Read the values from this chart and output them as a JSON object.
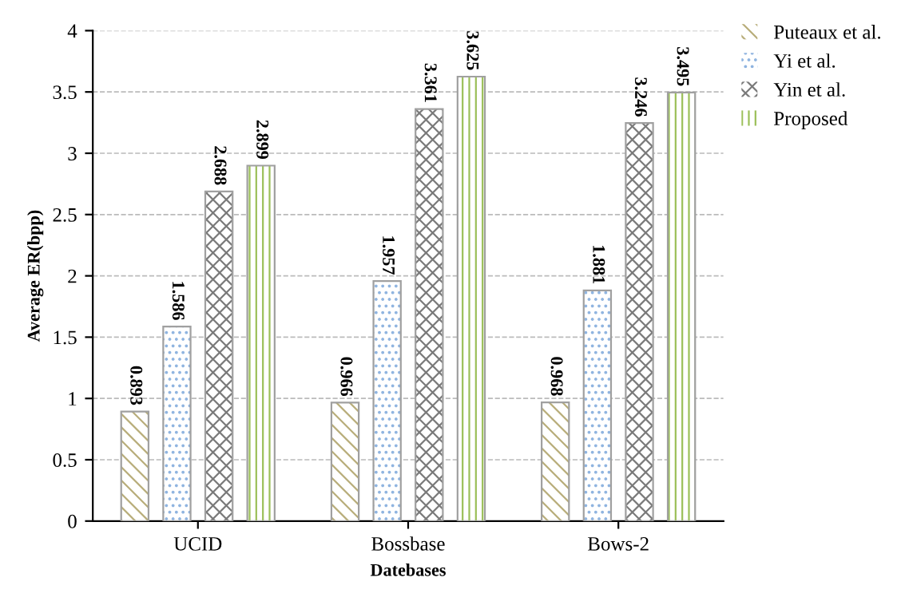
{
  "chart_data": {
    "type": "bar",
    "xlabel": "Datebases",
    "ylabel": "Average ER(bpp)",
    "categories": [
      "UCID",
      "Bossbase",
      "Bows-2"
    ],
    "series": [
      {
        "name": "Puteaux et al.",
        "color": "#b8ad7a",
        "values": [
          0.893,
          0.966,
          0.968
        ]
      },
      {
        "name": "Yi et al.",
        "color": "#8fb4e0",
        "values": [
          1.586,
          1.957,
          1.881
        ]
      },
      {
        "name": "Yin et al.",
        "color": "#7a7a7a",
        "values": [
          2.688,
          3.361,
          3.246
        ]
      },
      {
        "name": "Proposed",
        "color": "#9cc05a",
        "values": [
          2.899,
          3.625,
          3.495
        ]
      }
    ],
    "ylim": [
      0,
      4
    ],
    "yticks": [
      0,
      0.5,
      1,
      1.5,
      2,
      2.5,
      3,
      3.5,
      4
    ],
    "grid": "y",
    "legend": "top right",
    "data_labels": true
  }
}
